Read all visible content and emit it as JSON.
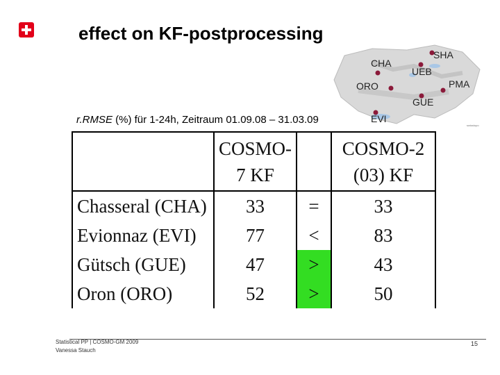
{
  "title": "effect on KF-postprocessing",
  "map": {
    "stations": [
      "CHA",
      "UEB",
      "SHA",
      "ORO",
      "PMA",
      "GUE",
      "EVI"
    ],
    "credit": "swisstopo"
  },
  "subtitle": {
    "metric": "r.RMSE",
    "text": "(%) für 1-24h, Zeitraum 01.09.08 – 31.03.09"
  },
  "table": {
    "headers": [
      "",
      "COSMO-7 KF",
      "",
      "COSMO-2 (03) KF"
    ],
    "rows": [
      {
        "station": "Chasseral (CHA)",
        "c7": "33",
        "rel": "=",
        "c2": "33",
        "highlight": false
      },
      {
        "station": "Evionnaz (EVI)",
        "c7": "77",
        "rel": "<",
        "c2": "83",
        "highlight": false
      },
      {
        "station": "Gütsch (GUE)",
        "c7": "47",
        "rel": ">",
        "c2": "43",
        "highlight": true
      },
      {
        "station": "Oron (ORO)",
        "c7": "52",
        "rel": ">",
        "c2": "50",
        "highlight": true
      }
    ]
  },
  "footer": {
    "line1": "Statistical PP | COSMO-GM 2009",
    "line2": "Vanessa Stauch",
    "page": "15"
  },
  "colors": {
    "highlight": "#33dd22",
    "logo": "#e2001a",
    "marker": "#8b1a3a"
  }
}
